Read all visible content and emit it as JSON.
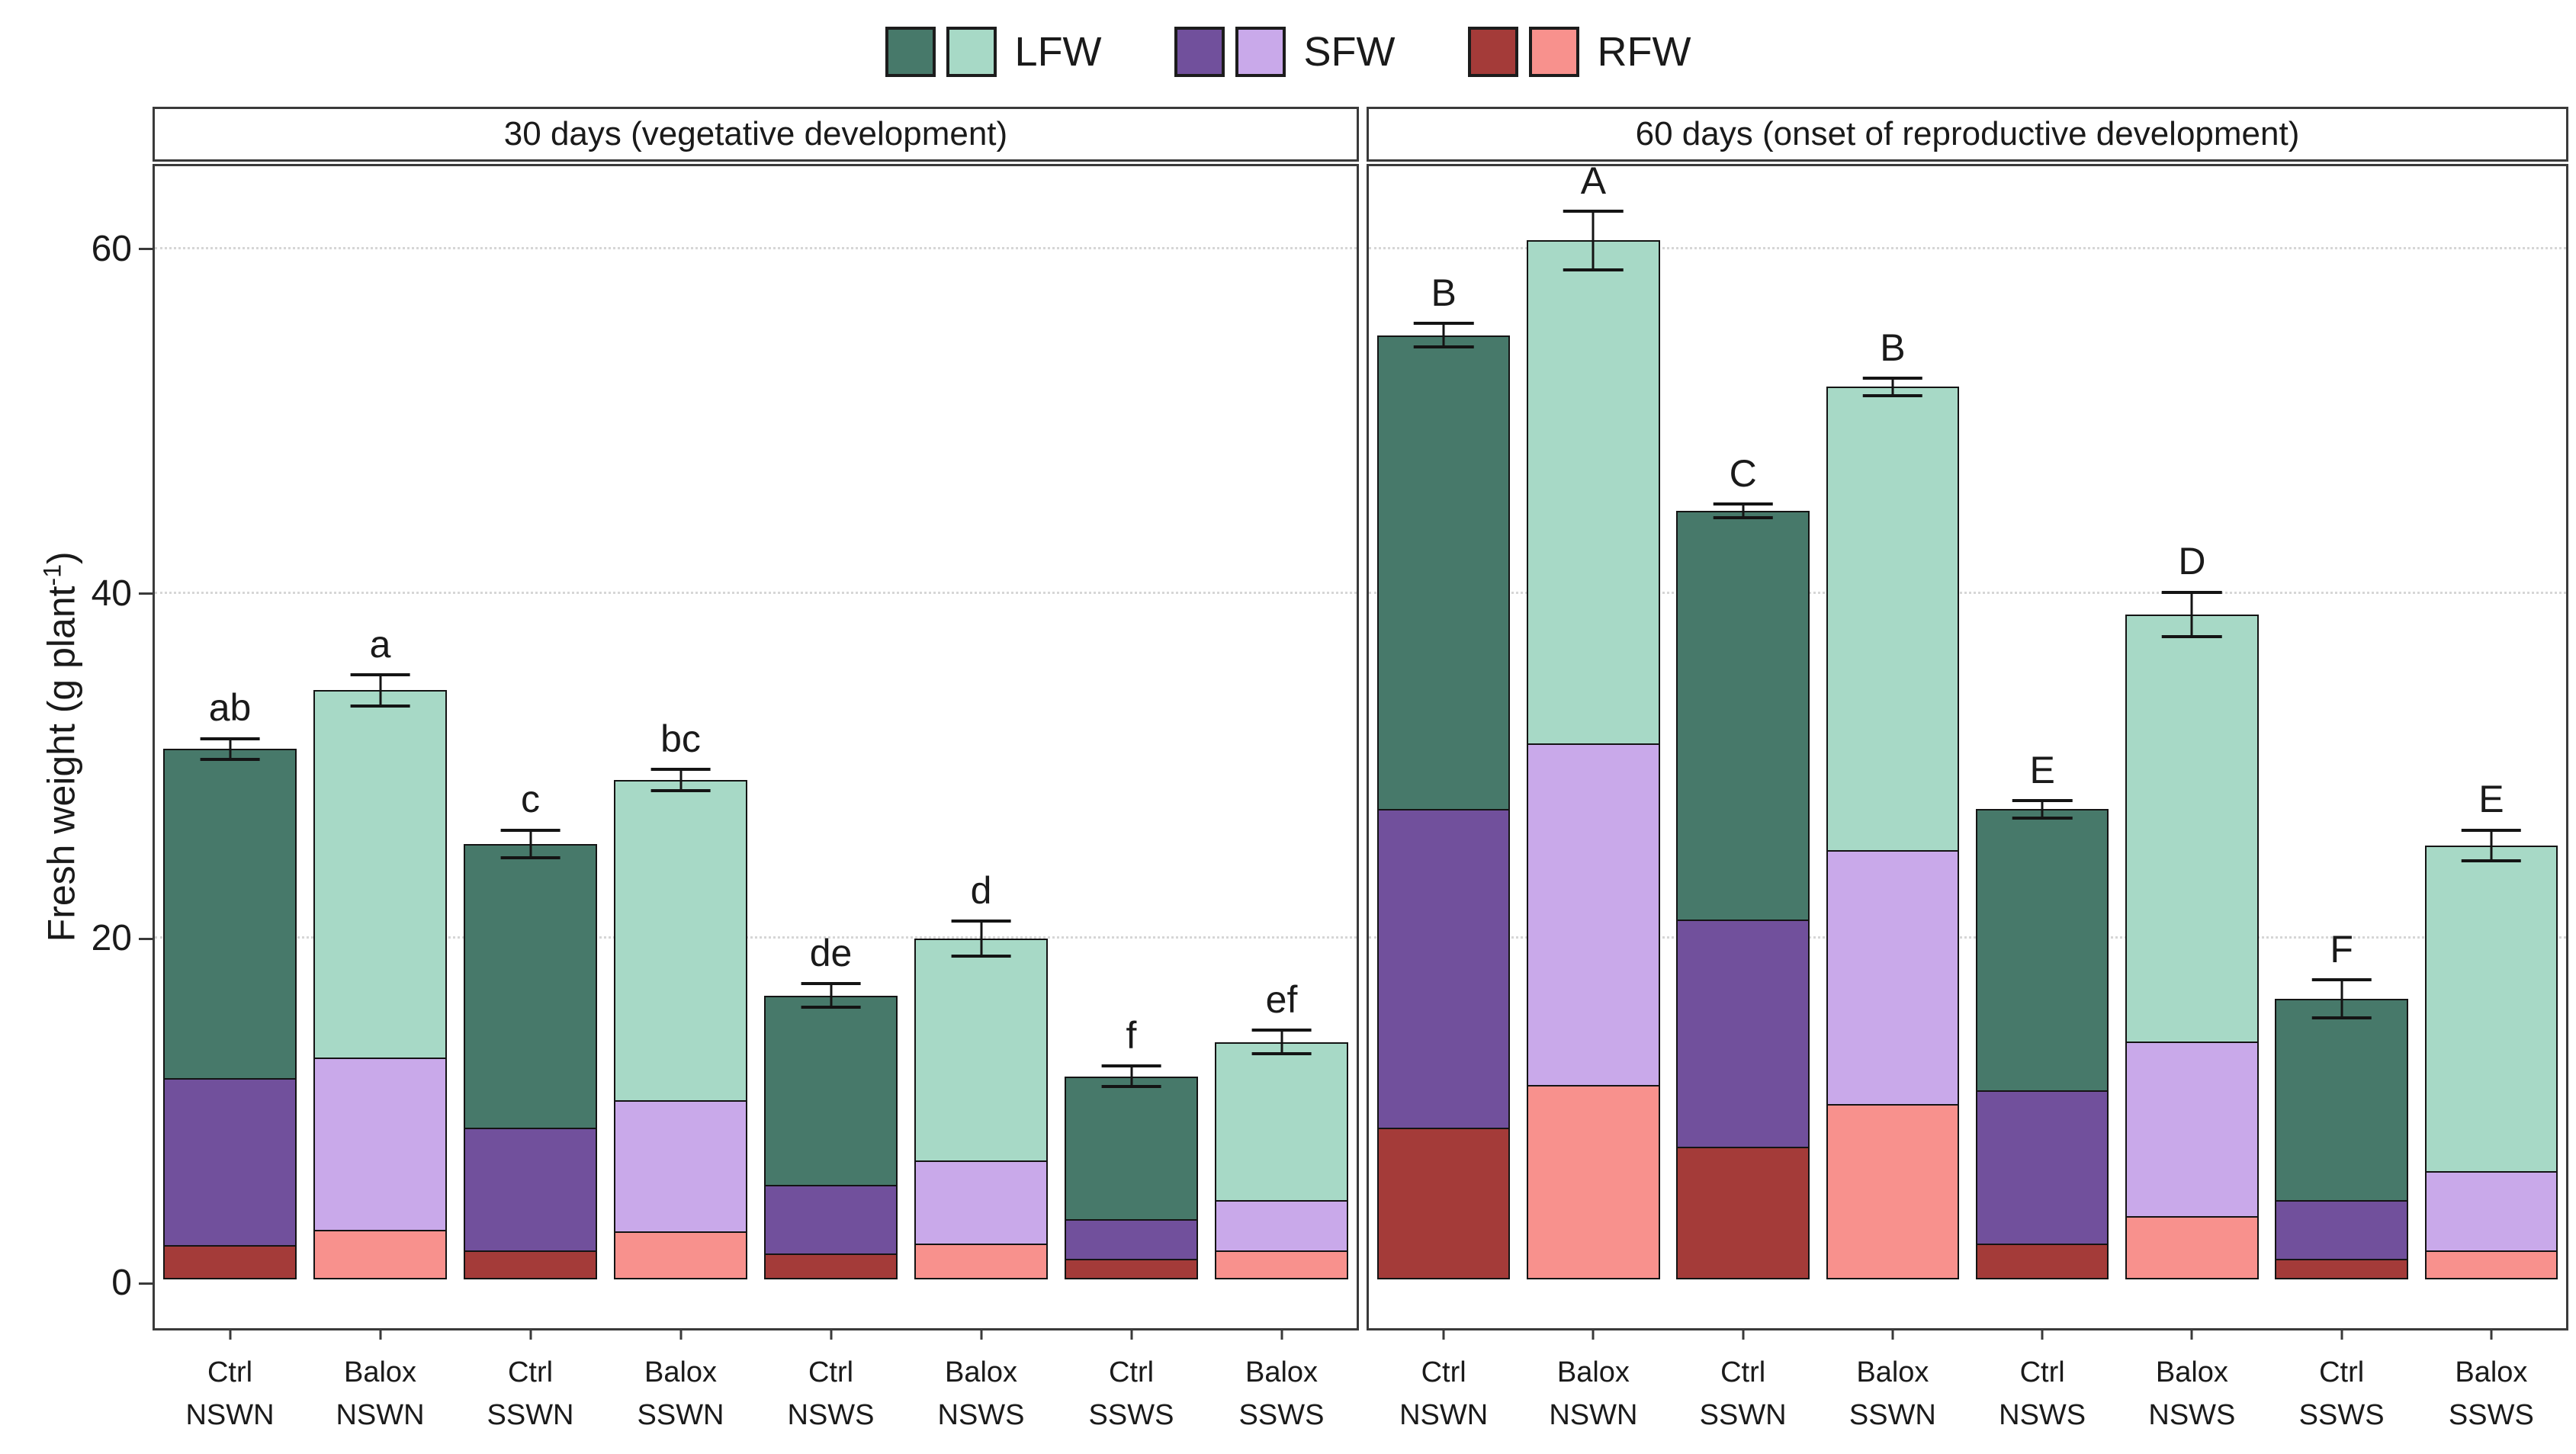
{
  "colors": {
    "border": "#3a3a3a",
    "grid": "#d6d6d6",
    "text": "#1a1a1a",
    "bar_outline": "#141414"
  },
  "legend": {
    "items": [
      {
        "label": "LFW",
        "dark": "#47796a",
        "light": "#a7d9c6"
      },
      {
        "label": "SFW",
        "dark": "#71509c",
        "light": "#c9a9ea"
      },
      {
        "label": "RFW",
        "dark": "#a43b39",
        "light": "#f8918d"
      }
    ]
  },
  "chart_data": {
    "type": "bar",
    "stacked": true,
    "ylabel_prefix": "Fresh weight (g plant",
    "ylabel_sup": "-1",
    "ylabel_suffix": ")",
    "ylim": [
      -2.6,
      64.8
    ],
    "yticks": [
      0,
      20,
      40,
      60
    ],
    "grid": "dotted horizontal at 20/40/60",
    "legend_position": "top-center",
    "segment_order_bottom_to_top": [
      "RFW",
      "SFW",
      "LFW"
    ],
    "series_note": "Ctrl bars use dark shades, Balox bars use light shades",
    "panels": [
      {
        "title": "30 days (vegetative development)",
        "bars": [
          {
            "line1": "Ctrl",
            "line2": "NSWN",
            "variant": "dark",
            "rfw": 2.0,
            "sfw": 9.8,
            "lfw": 19.2,
            "total": 31.0,
            "err": 0.6,
            "letter": "ab"
          },
          {
            "line1": "Balox",
            "line2": "NSWN",
            "variant": "light",
            "rfw": 2.9,
            "sfw": 10.1,
            "lfw": 21.4,
            "total": 34.4,
            "err": 0.9,
            "letter": "a"
          },
          {
            "line1": "Ctrl",
            "line2": "SSWN",
            "variant": "dark",
            "rfw": 1.7,
            "sfw": 7.2,
            "lfw": 16.6,
            "total": 25.5,
            "err": 0.8,
            "letter": "c"
          },
          {
            "line1": "Balox",
            "line2": "SSWN",
            "variant": "light",
            "rfw": 2.8,
            "sfw": 7.7,
            "lfw": 18.7,
            "total": 29.2,
            "err": 0.6,
            "letter": "bc"
          },
          {
            "line1": "Ctrl",
            "line2": "NSWS",
            "variant": "dark",
            "rfw": 1.5,
            "sfw": 4.1,
            "lfw": 11.1,
            "total": 16.7,
            "err": 0.7,
            "letter": "de"
          },
          {
            "line1": "Balox",
            "line2": "NSWS",
            "variant": "light",
            "rfw": 2.1,
            "sfw": 4.9,
            "lfw": 13.0,
            "total": 20.0,
            "err": 1.0,
            "letter": "d"
          },
          {
            "line1": "Ctrl",
            "line2": "SSWS",
            "variant": "dark",
            "rfw": 1.2,
            "sfw": 2.4,
            "lfw": 8.4,
            "total": 12.0,
            "err": 0.6,
            "letter": "f"
          },
          {
            "line1": "Balox",
            "line2": "SSWS",
            "variant": "light",
            "rfw": 1.7,
            "sfw": 3.0,
            "lfw": 9.3,
            "total": 14.0,
            "err": 0.7,
            "letter": "ef"
          }
        ]
      },
      {
        "title": "60 days (onset of reproductive development)",
        "bars": [
          {
            "line1": "Ctrl",
            "line2": "NSWN",
            "variant": "dark",
            "rfw": 8.8,
            "sfw": 18.6,
            "lfw": 27.6,
            "total": 55.0,
            "err": 0.7,
            "letter": "B"
          },
          {
            "line1": "Balox",
            "line2": "NSWN",
            "variant": "light",
            "rfw": 11.3,
            "sfw": 19.9,
            "lfw": 29.3,
            "total": 60.5,
            "err": 1.7,
            "letter": "A"
          },
          {
            "line1": "Ctrl",
            "line2": "SSWN",
            "variant": "dark",
            "rfw": 7.7,
            "sfw": 13.3,
            "lfw": 23.8,
            "total": 44.8,
            "err": 0.4,
            "letter": "C"
          },
          {
            "line1": "Balox",
            "line2": "SSWN",
            "variant": "light",
            "rfw": 10.2,
            "sfw": 14.8,
            "lfw": 27.0,
            "total": 52.0,
            "err": 0.5,
            "letter": "B"
          },
          {
            "line1": "Ctrl",
            "line2": "NSWS",
            "variant": "dark",
            "rfw": 2.1,
            "sfw": 9.0,
            "lfw": 16.4,
            "total": 27.5,
            "err": 0.5,
            "letter": "E"
          },
          {
            "line1": "Balox",
            "line2": "NSWS",
            "variant": "light",
            "rfw": 3.7,
            "sfw": 10.2,
            "lfw": 24.9,
            "total": 38.8,
            "err": 1.3,
            "letter": "D"
          },
          {
            "line1": "Ctrl",
            "line2": "SSWS",
            "variant": "dark",
            "rfw": 1.2,
            "sfw": 3.5,
            "lfw": 11.8,
            "total": 16.5,
            "err": 1.1,
            "letter": "F"
          },
          {
            "line1": "Balox",
            "line2": "SSWS",
            "variant": "light",
            "rfw": 1.7,
            "sfw": 4.7,
            "lfw": 19.0,
            "total": 25.4,
            "err": 0.9,
            "letter": "E"
          }
        ]
      }
    ]
  }
}
